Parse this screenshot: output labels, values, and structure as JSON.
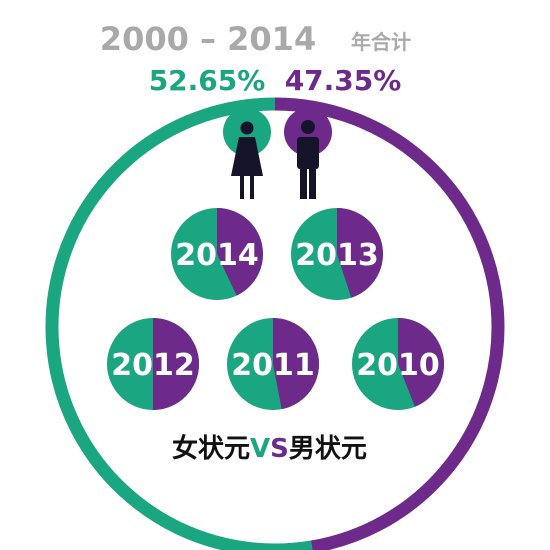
{
  "header": {
    "title_main": "2000 – 2014",
    "title_suffix": "年合计"
  },
  "caption": {
    "left": "女状元",
    "vs_v": "V",
    "vs_s": "S",
    "right": "男状元"
  },
  "colors": {
    "female": "#1aa680",
    "male": "#6d2a8a",
    "title": "#a9a9a9",
    "icon": "#15142a"
  },
  "icons": {
    "female": "woman-icon",
    "male": "man-icon"
  },
  "chart_data": [
    {
      "type": "pie",
      "role": "overall-ring",
      "slices": [
        {
          "key": "female",
          "label": "52.65%",
          "value": 52.65
        },
        {
          "key": "male",
          "label": "47.35%",
          "value": 47.35
        }
      ]
    },
    {
      "type": "pie",
      "role": "yearly",
      "pies": [
        {
          "year": "2014",
          "female": 57,
          "male": 43
        },
        {
          "year": "2013",
          "female": 55,
          "male": 45
        },
        {
          "year": "2012",
          "female": 50,
          "male": 50
        },
        {
          "year": "2011",
          "female": 53,
          "male": 47
        },
        {
          "year": "2010",
          "female": 56,
          "male": 44
        }
      ]
    }
  ]
}
